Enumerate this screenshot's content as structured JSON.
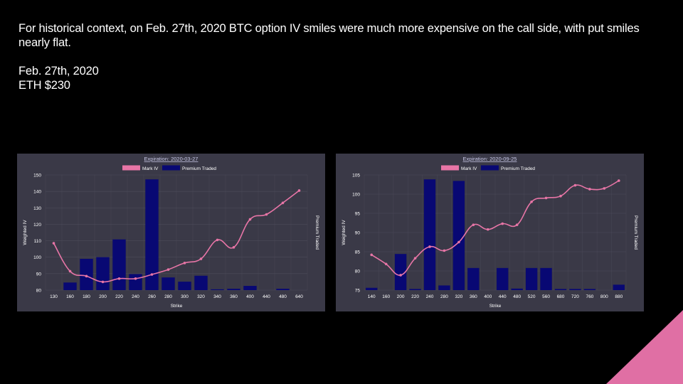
{
  "slide": {
    "intro": "For historical context, on Feb. 27th, 2020 BTC option IV smiles were much more expensive on the call side, with put smiles nearly flat.",
    "date": "Feb. 27th, 2020",
    "price": "ETH $230"
  },
  "colors": {
    "background": "#000000",
    "panel": "#3a3947",
    "mark_iv": "#e775a6",
    "premium": "#080873",
    "grid": "#4c4b5a",
    "axis_text": "#ffffff",
    "title_link": "#c9c9e8",
    "accent_triangle": "#e06fa4"
  },
  "chart_data": [
    {
      "type": "bar+line",
      "title": "Expiration: 2020-03-27",
      "xlabel": "Strike",
      "ylabel": "Weighted IV",
      "y2label": "Premium Traded",
      "legend": [
        "Mark IV",
        "Premium Traded"
      ],
      "legend_position": "top-center",
      "ylim": [
        80,
        150
      ],
      "yticks": [
        80,
        90,
        100,
        110,
        120,
        130,
        140,
        150
      ],
      "categories": [
        "130",
        "160",
        "180",
        "200",
        "220",
        "240",
        "260",
        "280",
        "300",
        "320",
        "340",
        "360",
        "400",
        "440",
        "480",
        "640"
      ],
      "series": [
        {
          "name": "Mark IV",
          "type": "line",
          "values": [
            108.5,
            91.5,
            88.5,
            85,
            87,
            87,
            89.5,
            92.5,
            96.5,
            99,
            110.5,
            106,
            123,
            126,
            133,
            140.5
          ]
        },
        {
          "name": "Premium Traded",
          "type": "bar",
          "values": [
            0,
            4.5,
            18.5,
            19.5,
            30,
            9.5,
            65.5,
            7.5,
            5,
            8.5,
            0.5,
            0.8,
            2.5,
            0,
            0.8,
            0
          ]
        }
      ],
      "grid": true
    },
    {
      "type": "bar+line",
      "title": "Expiration: 2020-09-25",
      "xlabel": "Strike",
      "ylabel": "Weighted IV",
      "y2label": "Premium Traded",
      "legend": [
        "Mark IV",
        "Premium Traded"
      ],
      "legend_position": "top-center",
      "ylim": [
        75,
        105
      ],
      "yticks": [
        75,
        80,
        85,
        90,
        95,
        100,
        105
      ],
      "categories": [
        "140",
        "160",
        "200",
        "220",
        "240",
        "280",
        "320",
        "360",
        "400",
        "440",
        "480",
        "520",
        "560",
        "680",
        "720",
        "760",
        "800",
        "880"
      ],
      "series": [
        {
          "name": "Mark IV",
          "type": "line",
          "values": [
            84.2,
            81.8,
            78.9,
            83.3,
            86.3,
            85.3,
            87.5,
            92,
            90.8,
            92.3,
            92,
            98,
            99,
            99.5,
            102.3,
            101.3,
            101.5,
            103.5
          ]
        },
        {
          "name": "Premium Traded",
          "type": "bar",
          "values": [
            0.6,
            0,
            9.3,
            0.3,
            28.5,
            1.2,
            28.1,
            5.7,
            0,
            5.7,
            0.4,
            5.7,
            5.7,
            0.3,
            0.3,
            0.3,
            0,
            1.4
          ]
        }
      ],
      "grid": true
    }
  ]
}
